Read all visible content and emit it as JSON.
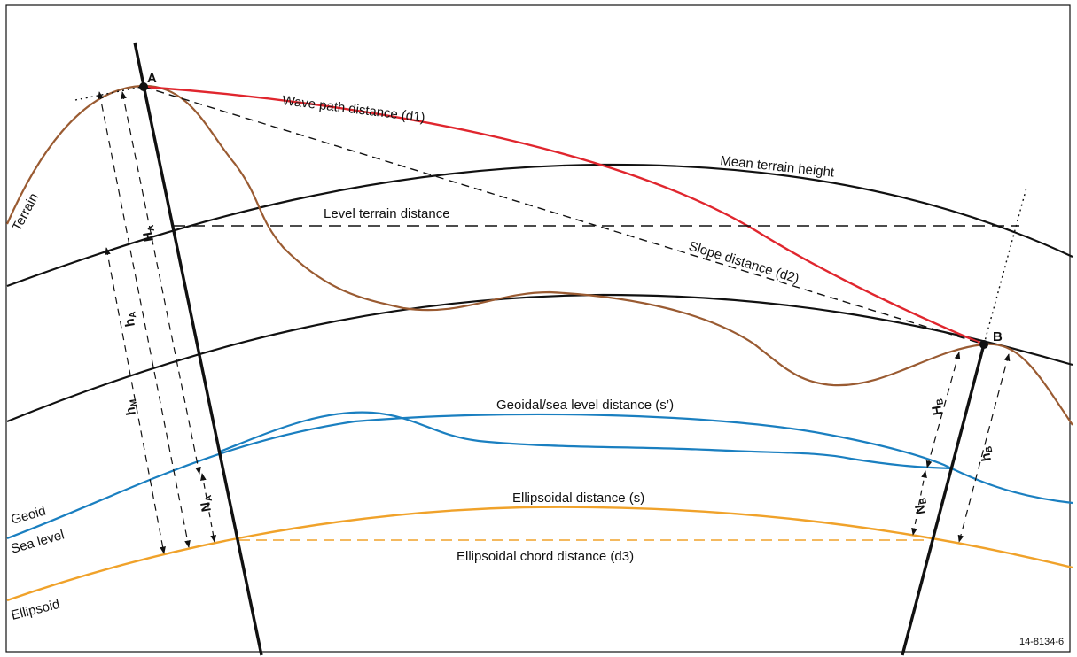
{
  "labels": {
    "wave_path": "Wave path distance (d1)",
    "mean_terrain": "Mean terrain height",
    "level_terrain": "Level terrain distance",
    "slope": "Slope distance (d2)",
    "geoidal": "Geoidal/sea level distance (s’)",
    "ellipsoidal": "Ellipsoidal distance (s)",
    "chord": "Ellipsoidal chord distance (d3)",
    "terrain": "Terrain",
    "geoid": "Geoid",
    "sea_level": "Sea level",
    "ellipsoid": "Ellipsoid",
    "point_a": "A",
    "point_b": "B",
    "figure_id": "14-8134-6"
  },
  "heights": {
    "H": "H",
    "h": "h",
    "N": "N",
    "sub_a": "A",
    "sub_b": "B",
    "sub_m": "M"
  },
  "colors": {
    "terrain": "#9a5b32",
    "wave_path": "#e0262e",
    "geoid": "#1a7fc0",
    "ellipsoid": "#f0a22a",
    "lines": "#111111"
  }
}
